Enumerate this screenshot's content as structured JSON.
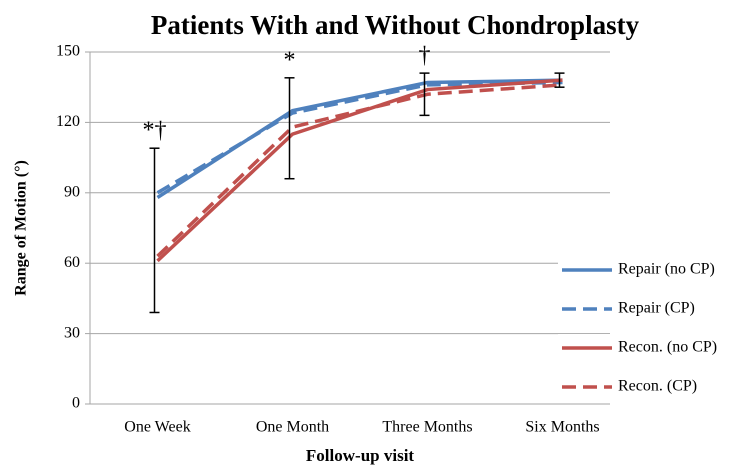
{
  "chart_data": {
    "type": "line",
    "title": "Patients With and Without Chondroplasty",
    "y_label": "Range of Motion (°)",
    "x_label": "Follow-up visit",
    "categories": [
      "One Week",
      "One Month",
      "Three Months",
      "Six Months"
    ],
    "series": [
      {
        "name": "Repair (no CP)",
        "color": "#4f81bd",
        "style": "solid",
        "values": [
          88,
          125,
          137,
          138
        ]
      },
      {
        "name": "Repair (CP)",
        "color": "#4f81bd",
        "style": "dashed",
        "values": [
          90,
          124,
          136,
          137
        ]
      },
      {
        "name": "Recon. (no CP)",
        "color": "#c0504d",
        "style": "solid",
        "values": [
          61,
          115,
          134,
          138
        ]
      },
      {
        "name": "Recon. (CP)",
        "color": "#c0504d",
        "style": "dashed",
        "values": [
          63,
          118,
          132,
          136
        ]
      }
    ],
    "error_bars": {
      "low": [
        39,
        96,
        123,
        135
      ],
      "high": [
        109,
        139,
        141,
        141
      ]
    },
    "annotations": [
      "*†",
      "*",
      "†",
      null
    ],
    "ylim": [
      0,
      150
    ],
    "yticks": [
      0,
      30,
      60,
      90,
      120,
      150
    ],
    "grid": true,
    "legend": "right"
  }
}
